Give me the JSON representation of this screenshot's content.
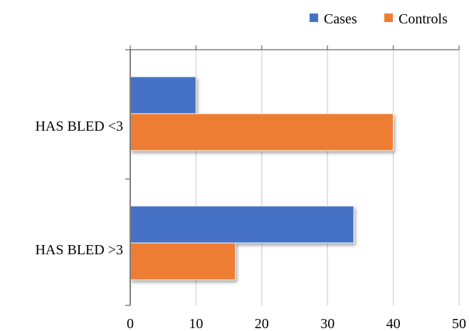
{
  "chart_data": {
    "type": "bar",
    "orientation": "horizontal",
    "title": "",
    "xlabel": "",
    "ylabel": "",
    "categories": [
      "HAS BLED <3",
      "HAS BLED >3"
    ],
    "series": [
      {
        "name": "Cases",
        "values": [
          10,
          34
        ],
        "color": "#4472c4"
      },
      {
        "name": "Controls",
        "values": [
          40,
          16
        ],
        "color": "#ed7d31"
      }
    ],
    "xlim": [
      0,
      50
    ],
    "xticks": [
      0,
      10,
      20,
      30,
      40,
      50
    ],
    "grid": true,
    "legend_position": "top-right"
  }
}
